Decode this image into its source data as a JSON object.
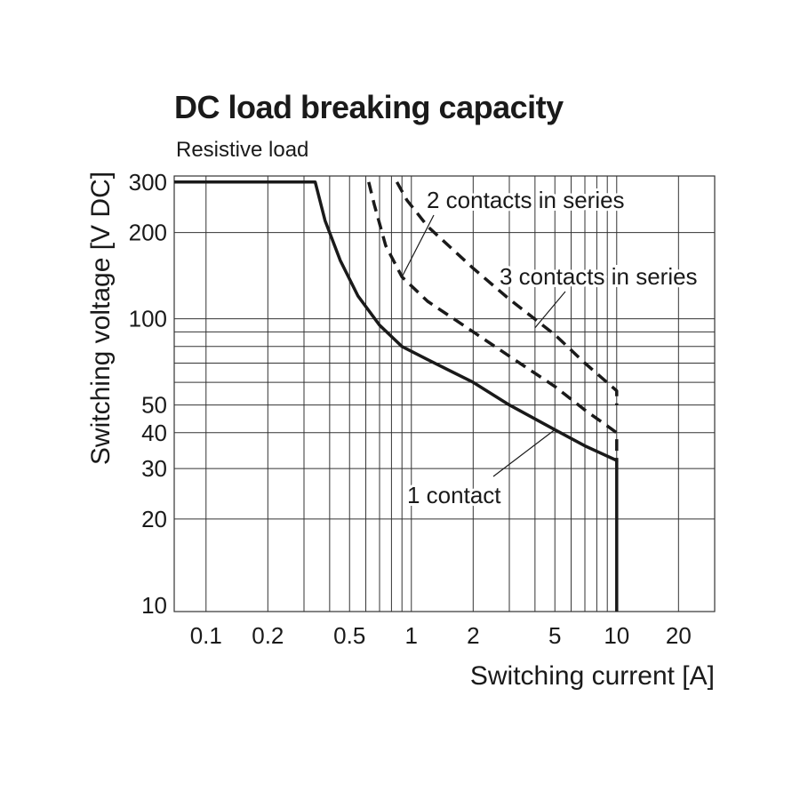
{
  "chart_data": {
    "type": "line",
    "title": "DC load breaking capacity",
    "subtitle": "Resistive load",
    "xlabel": "Switching current [A]",
    "ylabel": "Switching voltage [V DC]",
    "x_scale": "log",
    "y_scale": "log",
    "xlim": [
      0.07,
      30
    ],
    "ylim": [
      9.5,
      315
    ],
    "x_ticks": [
      0.1,
      0.2,
      0.5,
      1,
      2,
      5,
      10,
      20
    ],
    "x_tick_labels": [
      "0.1",
      "0.2",
      "0.5",
      "1",
      "2",
      "5",
      "10",
      "20"
    ],
    "y_ticks": [
      10,
      20,
      30,
      40,
      50,
      100,
      200,
      300
    ],
    "y_tick_labels": [
      "10",
      "20",
      "30",
      "40",
      "50",
      "100",
      "200",
      "300"
    ],
    "x_grid": [
      0.1,
      0.2,
      0.3,
      0.4,
      0.5,
      0.6,
      0.7,
      0.8,
      0.9,
      1,
      2,
      3,
      4,
      5,
      6,
      7,
      8,
      9,
      10,
      20
    ],
    "y_grid": [
      20,
      30,
      40,
      50,
      60,
      70,
      80,
      90,
      100,
      200
    ],
    "grid": true,
    "series": [
      {
        "name": "1 contact",
        "style": "solid",
        "points": [
          [
            0.07,
            300
          ],
          [
            0.34,
            300
          ],
          [
            0.38,
            220
          ],
          [
            0.45,
            160
          ],
          [
            0.55,
            120
          ],
          [
            0.7,
            95
          ],
          [
            0.9,
            80
          ],
          [
            1.2,
            72
          ],
          [
            2,
            60
          ],
          [
            3,
            50
          ],
          [
            5,
            41
          ],
          [
            7,
            36
          ],
          [
            10,
            32
          ],
          [
            10,
            9.5
          ]
        ]
      },
      {
        "name": "2 contacts in series",
        "style": "dashed",
        "points": [
          [
            0.62,
            300
          ],
          [
            0.66,
            250
          ],
          [
            0.75,
            180
          ],
          [
            0.9,
            140
          ],
          [
            1.2,
            115
          ],
          [
            2,
            90
          ],
          [
            3,
            74
          ],
          [
            5,
            58
          ],
          [
            7,
            48
          ],
          [
            10,
            40
          ],
          [
            10,
            31.5
          ]
        ]
      },
      {
        "name": "3 contacts in series",
        "style": "dashed",
        "points": [
          [
            0.85,
            300
          ],
          [
            0.95,
            260
          ],
          [
            1.2,
            210
          ],
          [
            2,
            150
          ],
          [
            3,
            117
          ],
          [
            5,
            88
          ],
          [
            7,
            70
          ],
          [
            10,
            56
          ],
          [
            10,
            50
          ]
        ]
      }
    ],
    "annotations": [
      {
        "text": "2 contacts in series",
        "target": [
          0.9,
          140
        ]
      },
      {
        "text": "3 contacts in series",
        "target": [
          4,
          93
        ]
      },
      {
        "text": "1 contact",
        "target": [
          5,
          41
        ]
      }
    ]
  }
}
